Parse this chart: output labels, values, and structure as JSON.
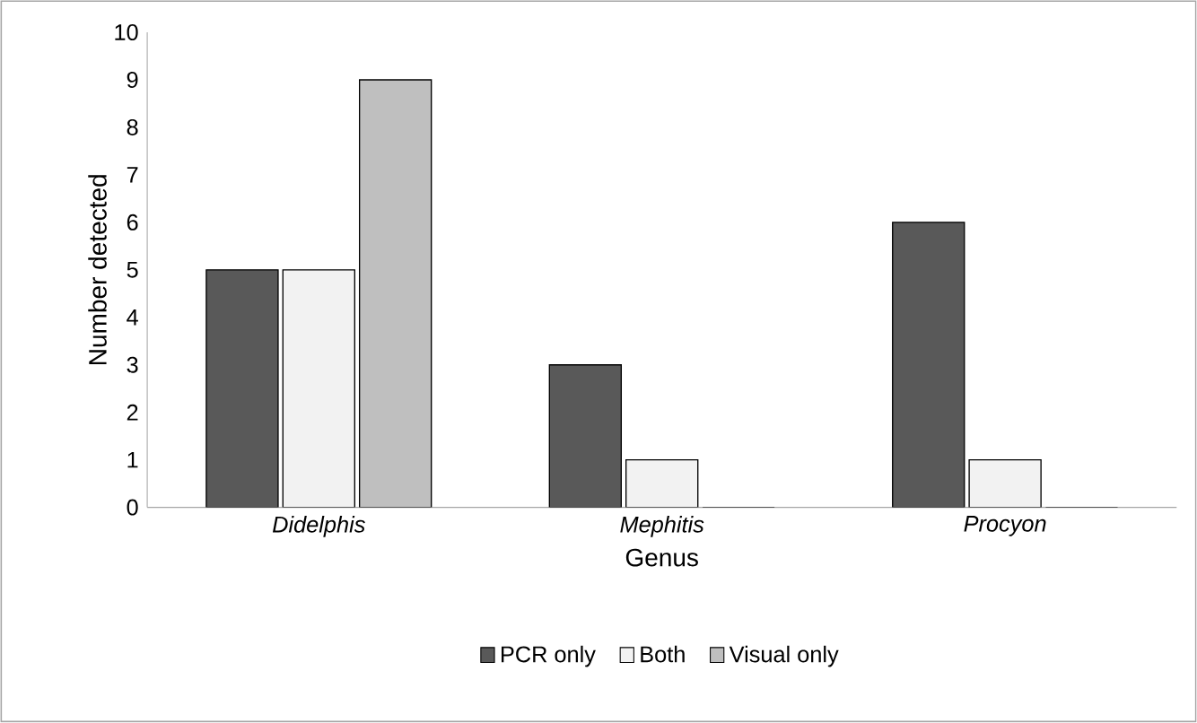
{
  "chart_data": {
    "type": "bar",
    "xlabel": "Genus",
    "ylabel": "Number detected",
    "categories": [
      "Didelphis",
      "Mephitis",
      "Procyon"
    ],
    "series": [
      {
        "name": "PCR only",
        "color": "#595959",
        "values": [
          5,
          3,
          6
        ]
      },
      {
        "name": "Both",
        "color": "#f2f2f2",
        "values": [
          5,
          1,
          1
        ]
      },
      {
        "name": "Visual only",
        "color": "#bfbfbf",
        "values": [
          9,
          0,
          0
        ]
      }
    ],
    "ylim": [
      0,
      10
    ],
    "yticks": [
      0,
      1,
      2,
      3,
      4,
      5,
      6,
      7,
      8,
      9,
      10
    ],
    "grid": false,
    "legend": "bottom"
  }
}
